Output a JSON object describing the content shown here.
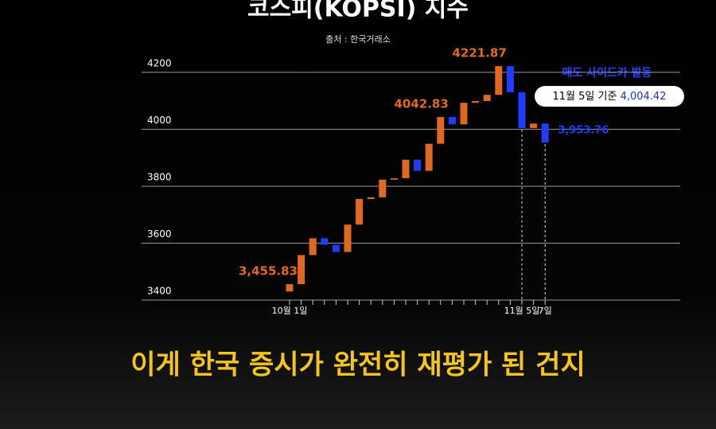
{
  "chart_data": {
    "type": "waterfall",
    "title": "코스피(KOPSI) 지수",
    "subtitle": "출처 : 한국거래소",
    "categories": [
      "10월 1일",
      null,
      null,
      null,
      null,
      null,
      null,
      null,
      null,
      null,
      null,
      null,
      null,
      null,
      null,
      null,
      null,
      null,
      null,
      null,
      "11월 5일",
      null,
      "7일"
    ],
    "open": [
      3430,
      3455.83,
      3558,
      3617,
      3594,
      3569,
      3665,
      3755,
      3761,
      3823,
      3828,
      3893,
      3854,
      3949,
      4042.83,
      4017,
      4093,
      4099,
      4121,
      4221.87,
      4130,
      4004.42,
      4020
    ],
    "close": [
      3455.83,
      3558,
      3617,
      3594,
      3569,
      3665,
      3755,
      3761,
      3823,
      3828,
      3893,
      3854,
      3949,
      4042.83,
      4017,
      4093,
      4099,
      4121,
      4221.87,
      4130,
      4004.42,
      4020,
      3953.76
    ],
    "value_labels": [
      "3,455.83",
      null,
      null,
      null,
      null,
      null,
      null,
      null,
      null,
      null,
      null,
      null,
      null,
      "4042.83",
      null,
      null,
      null,
      null,
      "4221.87",
      null,
      "4,004.42",
      null,
      "3,953.76"
    ],
    "up_color": "#e0691f",
    "down_color": "#1f3cff",
    "ylim": [
      3400,
      4250
    ],
    "yticks": [
      3400,
      3600,
      3800,
      4000,
      4200
    ],
    "grid": true,
    "annotation": "매도 사이드카 발동",
    "callout": {
      "text": "11월 5일 기준",
      "at": "11월 5일"
    },
    "caption": "이게 한국 증시가 완전히 재평가 된 건지"
  }
}
